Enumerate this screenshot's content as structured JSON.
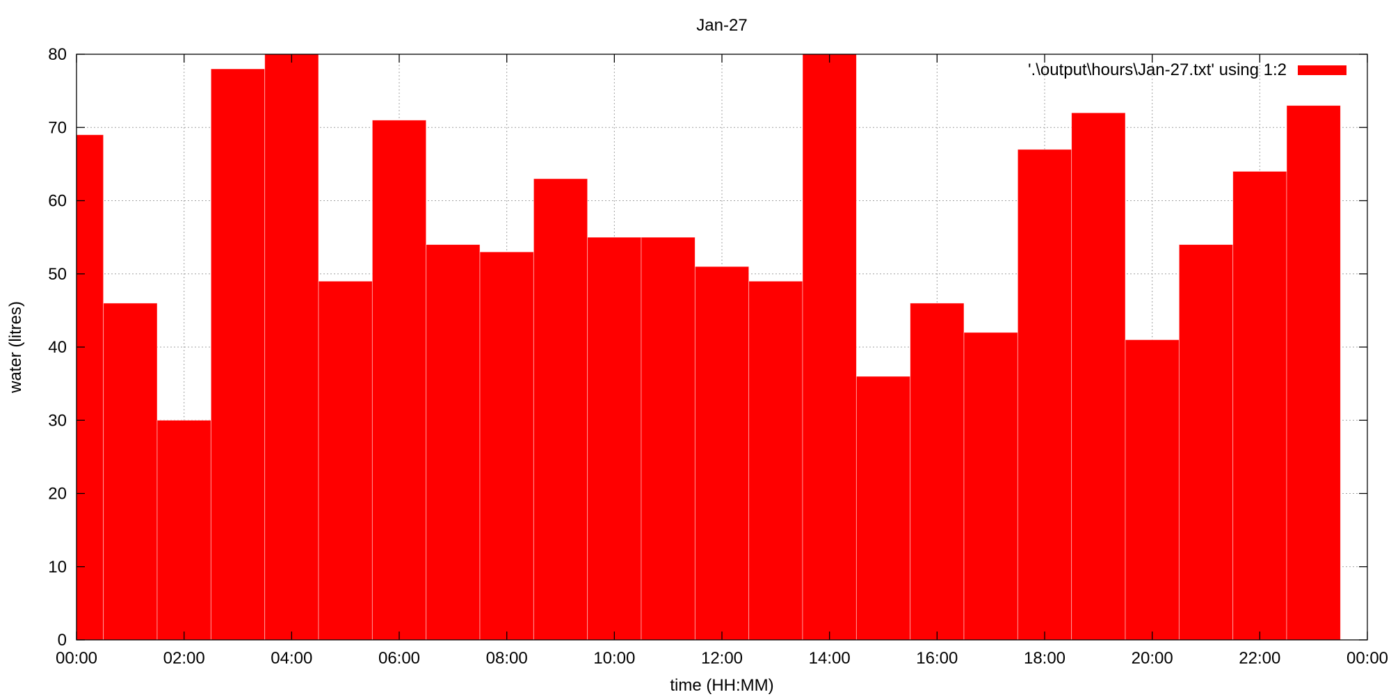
{
  "chart_data": {
    "type": "bar",
    "title": "Jan-27",
    "xlabel": "time (HH:MM)",
    "ylabel": "water (litres)",
    "ylim": [
      0,
      80
    ],
    "xlim": [
      "00:00",
      "24:00"
    ],
    "yticks": [
      0,
      10,
      20,
      30,
      40,
      50,
      60,
      70,
      80
    ],
    "xtick_labels": [
      "00:00",
      "02:00",
      "04:00",
      "06:00",
      "08:00",
      "10:00",
      "12:00",
      "14:00",
      "16:00",
      "18:00",
      "20:00",
      "22:00",
      "00:00"
    ],
    "grid": true,
    "legend_position": "top-right",
    "series": [
      {
        "name": "'.\\output\\hours\\Jan-27.txt' using 1:2",
        "color": "#ff0000",
        "x_hours": [
          0,
          1,
          2,
          3,
          4,
          5,
          6,
          7,
          8,
          9,
          10,
          11,
          12,
          13,
          14,
          15,
          16,
          17,
          18,
          19,
          20,
          21,
          22,
          23
        ],
        "values": [
          69,
          46,
          30,
          78,
          80,
          49,
          71,
          54,
          53,
          63,
          55,
          55,
          51,
          49,
          80,
          36,
          46,
          42,
          67,
          72,
          41,
          54,
          64,
          73
        ]
      }
    ]
  }
}
